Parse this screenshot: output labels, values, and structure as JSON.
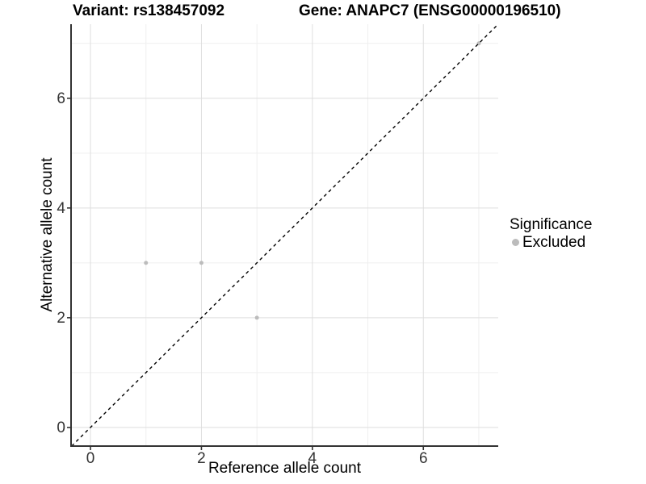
{
  "figure": {
    "title_left": "Variant: rs138457092",
    "title_right": "Gene: ANAPC7 (ENSG00000196510)"
  },
  "chart_data": {
    "type": "scatter",
    "title": "Variant: rs138457092 / Gene: ANAPC7 (ENSG00000196510)",
    "xlabel": "Reference allele count",
    "ylabel": "Alternative allele count",
    "x_ticks": [
      0,
      2,
      4,
      6
    ],
    "x_minor_ticks": [
      1,
      3,
      5,
      7
    ],
    "y_ticks": [
      0,
      2,
      4,
      6
    ],
    "y_minor_ticks": [
      1,
      3,
      5,
      7
    ],
    "xlim": [
      -0.35,
      7.35
    ],
    "ylim": [
      -0.34,
      7.35
    ],
    "grid": "major+minor",
    "identity_line": {
      "slope": 1,
      "intercept": 0,
      "style": "dashed",
      "color": "#000000"
    },
    "series": [
      {
        "name": "Excluded",
        "color": "#bcbcbc",
        "points": [
          [
            1,
            3
          ],
          [
            2,
            3
          ],
          [
            3,
            2
          ],
          [
            7,
            7
          ]
        ]
      }
    ],
    "legend": {
      "title": "Significance",
      "position": "right",
      "items": [
        {
          "label": "Excluded",
          "color": "#bcbcbc"
        }
      ]
    }
  },
  "colors": {
    "background": "#ffffff",
    "grid_major": "#dedede",
    "grid_minor": "#efefef",
    "axis_line": "#333333",
    "tick_mark": "#333333",
    "tick_label": "#333333",
    "title_text": "#000000",
    "point": "#bcbcbc"
  }
}
